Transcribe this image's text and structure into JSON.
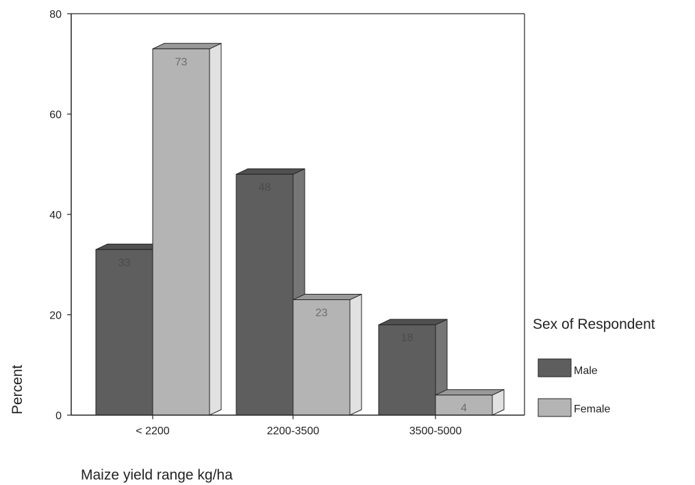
{
  "chart_data": {
    "type": "bar",
    "categories": [
      "< 2200",
      "2200-3500",
      "3500-5000"
    ],
    "series": [
      {
        "name": "Male",
        "values": [
          33,
          48,
          18
        ],
        "data_labels": [
          "33",
          "48",
          "18"
        ],
        "color": "#5e5e5e"
      },
      {
        "name": "Female",
        "values": [
          73,
          23,
          4
        ],
        "data_labels": [
          "73",
          "23",
          "4"
        ],
        "color": "#b4b4b4"
      }
    ],
    "xlabel": "Maize yield range kg/ha",
    "ylabel": "Percent",
    "ylim": [
      0,
      80
    ],
    "yticks": [
      "0",
      "20",
      "40",
      "60",
      "80"
    ],
    "legend": {
      "title": "Sex of Respondent",
      "position": "right"
    },
    "style": "3d-bars",
    "grid": false
  }
}
